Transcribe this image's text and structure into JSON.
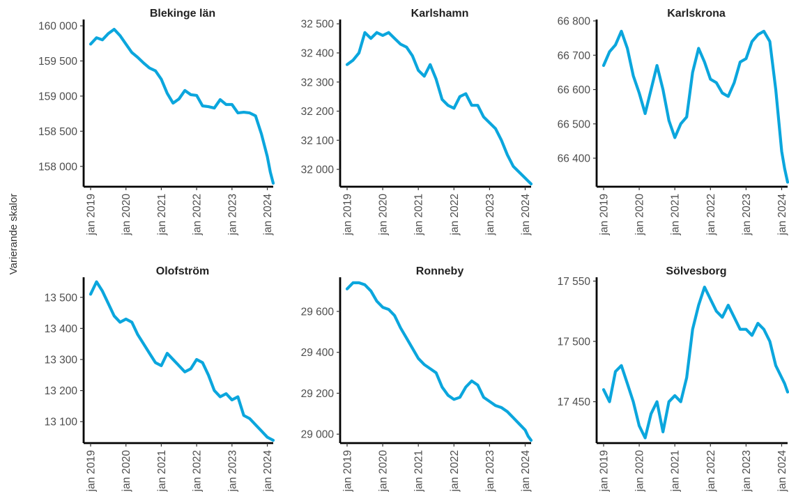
{
  "ylabel": "Varierande skalor",
  "line_color": "#0ba6dd",
  "chart_data": [
    {
      "type": "line",
      "title": "Blekinge län",
      "x_tick_labels": [
        "jan 2019",
        "jan 2020",
        "jan 2021",
        "jan 2022",
        "jan 2023",
        "jan 2024"
      ],
      "y_ticks": [
        158000,
        158500,
        159000,
        159500,
        160000
      ],
      "y_tick_labels": [
        "158 000",
        "158 500",
        "159 000",
        "159 500",
        "160 000"
      ],
      "ylim": [
        157750,
        160070
      ],
      "series": [
        {
          "x": [
            0,
            2,
            4,
            6,
            8,
            10,
            12,
            14,
            16,
            18,
            20,
            22,
            24,
            26,
            28,
            30,
            32,
            34,
            36,
            38,
            40,
            42,
            44,
            46,
            48,
            50,
            52,
            54,
            56,
            58,
            60,
            61,
            62
          ],
          "values": [
            159740,
            159830,
            159800,
            159890,
            159950,
            159860,
            159740,
            159620,
            159550,
            159470,
            159400,
            159360,
            159240,
            159040,
            158900,
            158960,
            159080,
            159020,
            159010,
            158860,
            158850,
            158830,
            158950,
            158880,
            158880,
            158760,
            158770,
            158760,
            158720,
            158460,
            158140,
            157920,
            157760
          ]
        }
      ]
    },
    {
      "type": "line",
      "title": "Karlshamn",
      "x_tick_labels": [
        "jan 2019",
        "jan 2020",
        "jan 2021",
        "jan 2022",
        "jan 2023",
        "jan 2024"
      ],
      "y_ticks": [
        32000,
        32100,
        32200,
        32300,
        32400,
        32500
      ],
      "y_tick_labels": [
        "32 000",
        "32 100",
        "32 200",
        "32 300",
        "32 400",
        "32 500"
      ],
      "ylim": [
        31950,
        32510
      ],
      "series": [
        {
          "x": [
            0,
            2,
            4,
            6,
            8,
            10,
            12,
            14,
            16,
            18,
            20,
            22,
            24,
            26,
            28,
            30,
            32,
            34,
            36,
            38,
            40,
            42,
            44,
            46,
            48,
            50,
            52,
            54,
            56,
            58,
            60,
            61,
            62
          ],
          "values": [
            32360,
            32375,
            32400,
            32470,
            32450,
            32470,
            32460,
            32470,
            32450,
            32430,
            32420,
            32390,
            32340,
            32320,
            32360,
            32310,
            32240,
            32220,
            32210,
            32250,
            32260,
            32220,
            32220,
            32180,
            32160,
            32140,
            32100,
            32050,
            32010,
            31990,
            31970,
            31960,
            31950
          ]
        }
      ]
    },
    {
      "type": "line",
      "title": "Karlskrona",
      "x_tick_labels": [
        "jan 2019",
        "jan 2020",
        "jan 2021",
        "jan 2022",
        "jan 2023",
        "jan 2024"
      ],
      "y_ticks": [
        66400,
        66500,
        66600,
        66700,
        66800
      ],
      "y_tick_labels": [
        "66 400",
        "66 500",
        "66 600",
        "66 700",
        "66 800"
      ],
      "ylim": [
        66325,
        66800
      ],
      "series": [
        {
          "x": [
            0,
            2,
            4,
            6,
            8,
            10,
            12,
            14,
            16,
            18,
            20,
            22,
            24,
            26,
            28,
            30,
            32,
            34,
            36,
            38,
            40,
            42,
            44,
            46,
            48,
            50,
            52,
            54,
            56,
            58,
            60,
            61,
            62
          ],
          "values": [
            66670,
            66710,
            66730,
            66770,
            66720,
            66640,
            66590,
            66530,
            66600,
            66670,
            66600,
            66510,
            66460,
            66500,
            66520,
            66650,
            66720,
            66680,
            66630,
            66620,
            66590,
            66580,
            66620,
            66680,
            66690,
            66740,
            66760,
            66770,
            66740,
            66600,
            66420,
            66370,
            66330
          ]
        }
      ]
    },
    {
      "type": "line",
      "title": "Olofström",
      "x_tick_labels": [
        "jan 2019",
        "jan 2020",
        "jan 2021",
        "jan 2022",
        "jan 2023",
        "jan 2024"
      ],
      "y_ticks": [
        13100,
        13200,
        13300,
        13400,
        13500
      ],
      "y_tick_labels": [
        "13 100",
        "13 200",
        "13 300",
        "13 400",
        "13 500"
      ],
      "ylim": [
        13040,
        13560
      ],
      "series": [
        {
          "x": [
            0,
            2,
            4,
            6,
            8,
            10,
            12,
            14,
            16,
            18,
            20,
            22,
            24,
            26,
            28,
            30,
            32,
            34,
            36,
            38,
            40,
            42,
            44,
            46,
            48,
            50,
            52,
            54,
            56,
            58,
            60,
            61,
            62
          ],
          "values": [
            13510,
            13550,
            13520,
            13480,
            13440,
            13420,
            13430,
            13420,
            13380,
            13350,
            13320,
            13290,
            13280,
            13320,
            13300,
            13280,
            13260,
            13270,
            13300,
            13290,
            13250,
            13200,
            13180,
            13190,
            13170,
            13180,
            13120,
            13110,
            13090,
            13070,
            13050,
            13045,
            13040
          ]
        }
      ]
    },
    {
      "type": "line",
      "title": "Ronneby",
      "x_tick_labels": [
        "jan 2019",
        "jan 2020",
        "jan 2021",
        "jan 2022",
        "jan 2023",
        "jan 2024"
      ],
      "y_ticks": [
        29000,
        29200,
        29400,
        29600
      ],
      "y_tick_labels": [
        "29 000",
        "29 200",
        "29 400",
        "29 600"
      ],
      "ylim": [
        28970,
        29760
      ],
      "series": [
        {
          "x": [
            0,
            2,
            4,
            6,
            8,
            10,
            12,
            14,
            16,
            18,
            20,
            22,
            24,
            26,
            28,
            30,
            32,
            34,
            36,
            38,
            40,
            42,
            44,
            46,
            48,
            50,
            52,
            54,
            56,
            58,
            60,
            61,
            62
          ],
          "values": [
            29710,
            29740,
            29740,
            29730,
            29700,
            29650,
            29620,
            29610,
            29580,
            29520,
            29470,
            29420,
            29370,
            29340,
            29320,
            29300,
            29230,
            29190,
            29170,
            29180,
            29230,
            29260,
            29240,
            29180,
            29160,
            29140,
            29130,
            29110,
            29080,
            29050,
            29020,
            28990,
            28970
          ]
        }
      ]
    },
    {
      "type": "line",
      "title": "Sölvesborg",
      "x_tick_labels": [
        "jan 2019",
        "jan 2020",
        "jan 2021",
        "jan 2022",
        "jan 2023",
        "jan 2024"
      ],
      "y_ticks": [
        17450,
        17500,
        17550
      ],
      "y_tick_labels": [
        "17 450",
        "17 500",
        "17 550"
      ],
      "ylim": [
        17418,
        17552
      ],
      "series": [
        {
          "x": [
            0,
            2,
            4,
            6,
            8,
            10,
            12,
            14,
            16,
            18,
            20,
            22,
            24,
            26,
            28,
            30,
            32,
            34,
            36,
            38,
            40,
            42,
            44,
            46,
            48,
            50,
            52,
            54,
            56,
            58,
            60,
            61,
            62
          ],
          "values": [
            17460,
            17450,
            17475,
            17480,
            17465,
            17450,
            17430,
            17420,
            17440,
            17450,
            17425,
            17450,
            17455,
            17450,
            17470,
            17510,
            17530,
            17545,
            17535,
            17525,
            17520,
            17530,
            17520,
            17510,
            17510,
            17505,
            17515,
            17510,
            17500,
            17480,
            17470,
            17465,
            17458
          ]
        }
      ]
    }
  ]
}
